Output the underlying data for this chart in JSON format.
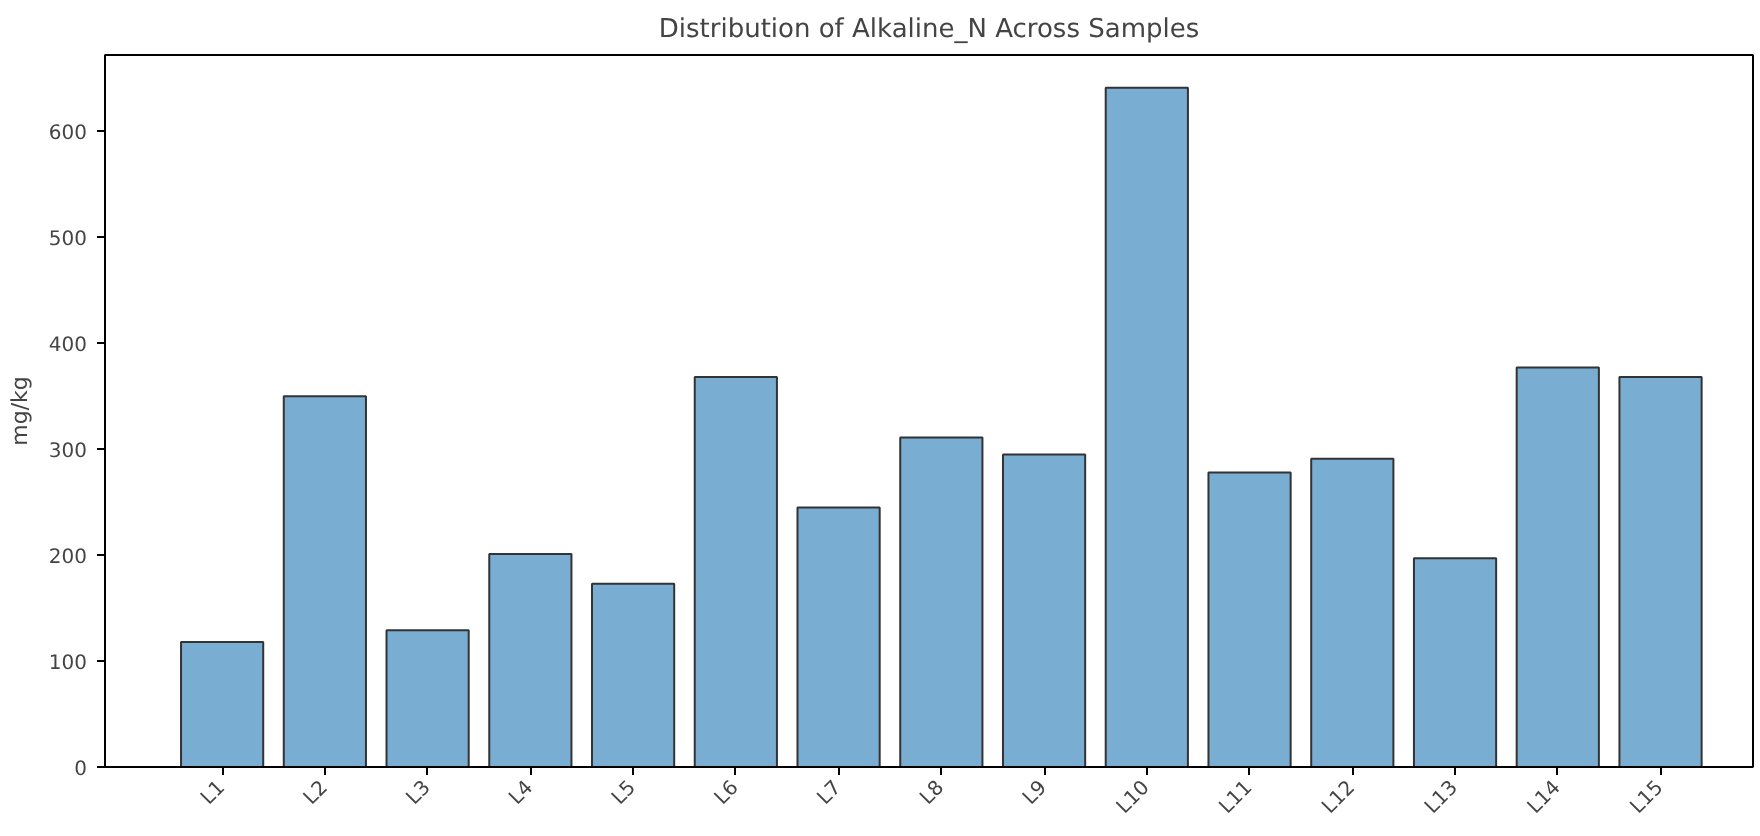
{
  "chart_data": {
    "type": "bar",
    "title": "Distribution of Alkaline_N Across Samples",
    "ylabel": "mg/kg",
    "categories": [
      "L1",
      "L2",
      "L3",
      "L4",
      "L5",
      "L6",
      "L7",
      "L8",
      "L9",
      "L10",
      "L11",
      "L12",
      "L13",
      "L14",
      "L15"
    ],
    "values": [
      118,
      350,
      129,
      201,
      173,
      368,
      245,
      311,
      295,
      641,
      278,
      291,
      197,
      377,
      368
    ],
    "color": "#79add2",
    "ylim": [
      0,
      672
    ],
    "yticks": [
      0,
      100,
      200,
      300,
      400,
      500,
      600
    ],
    "grid": false
  }
}
